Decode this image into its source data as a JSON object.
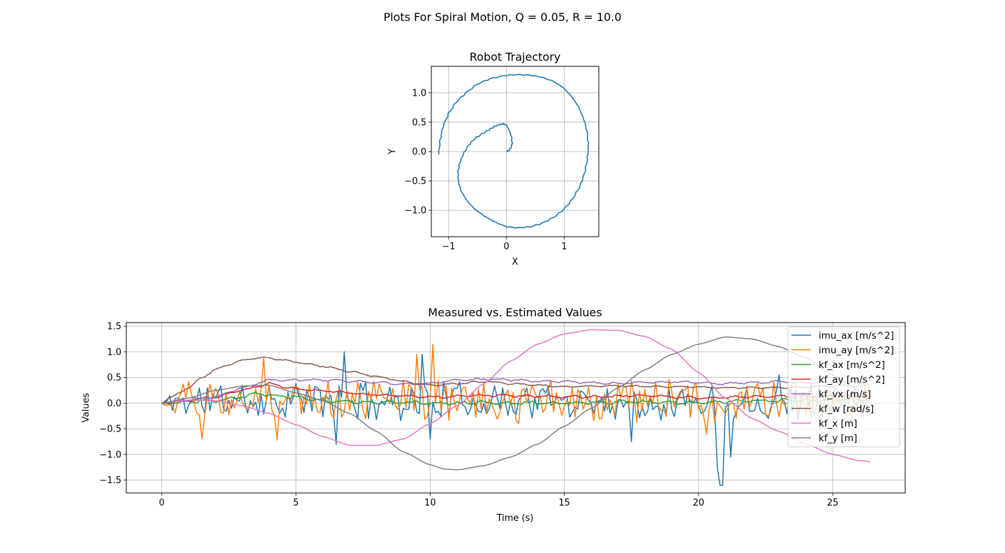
{
  "figure": {
    "suptitle": "Plots For Spiral Motion, Q = 0.05, R = 10.0"
  },
  "chart_data": [
    {
      "type": "line",
      "title": "Robot Trajectory",
      "xlabel": "X",
      "ylabel": "Y",
      "xlim": [
        -1.3,
        1.6
      ],
      "ylim": [
        -1.45,
        1.45
      ],
      "xticks": [
        -1,
        0,
        1
      ],
      "xtick_labels": [
        "−1",
        "0",
        "1"
      ],
      "yticks": [
        -1.0,
        -0.5,
        0.0,
        0.5,
        1.0
      ],
      "ytick_labels": [
        "−1.0",
        "−0.5",
        "0.0",
        "0.5",
        "1.0"
      ],
      "grid": true,
      "series": [
        {
          "color": "#1f77b4",
          "x": [
            0.0,
            0.05,
            0.1,
            0.09,
            0.04,
            0.0,
            -0.05,
            -0.12,
            -0.2,
            -0.3,
            -0.42,
            -0.55,
            -0.66,
            -0.75,
            -0.81,
            -0.84,
            -0.83,
            -0.78,
            -0.68,
            -0.55,
            -0.38,
            -0.2,
            0.0,
            0.2,
            0.42,
            0.62,
            0.82,
            1.0,
            1.15,
            1.27,
            1.35,
            1.4,
            1.42,
            1.4,
            1.34,
            1.25,
            1.12,
            0.97,
            0.8,
            0.6,
            0.4,
            0.18,
            -0.05,
            -0.28,
            -0.5,
            -0.7,
            -0.87,
            -1.0,
            -1.1,
            -1.15,
            -1.17
          ],
          "y": [
            0.0,
            0.02,
            0.12,
            0.25,
            0.38,
            0.45,
            0.47,
            0.46,
            0.43,
            0.37,
            0.3,
            0.22,
            0.1,
            -0.05,
            -0.2,
            -0.35,
            -0.52,
            -0.68,
            -0.84,
            -0.98,
            -1.1,
            -1.2,
            -1.28,
            -1.3,
            -1.28,
            -1.22,
            -1.12,
            -0.98,
            -0.8,
            -0.6,
            -0.38,
            -0.15,
            0.08,
            0.32,
            0.55,
            0.76,
            0.95,
            1.1,
            1.2,
            1.27,
            1.3,
            1.31,
            1.29,
            1.24,
            1.15,
            1.0,
            0.84,
            0.65,
            0.42,
            0.18,
            -0.05
          ]
        }
      ]
    },
    {
      "type": "line",
      "title": "Measured vs. Estimated Values",
      "xlabel": "Time (s)",
      "ylabel": "Values",
      "xlim": [
        -1.32,
        27.7
      ],
      "ylim": [
        -1.75,
        1.57
      ],
      "xticks": [
        0,
        5,
        10,
        15,
        20,
        25
      ],
      "xtick_labels": [
        "0",
        "5",
        "10",
        "15",
        "20",
        "25"
      ],
      "yticks": [
        -1.5,
        -1.0,
        -0.5,
        0.0,
        0.5,
        1.0,
        1.5
      ],
      "ytick_labels": [
        "−1.5",
        "−1.0",
        "−0.5",
        "0.0",
        "0.5",
        "1.0",
        "1.5"
      ],
      "grid": true,
      "legend": "top-right",
      "series": [
        {
          "name": "imu_ax [m/s^2]",
          "color": "#1f77b4",
          "kind": "noise",
          "seed": 11,
          "amp": 0.32,
          "spikes": [
            [
              9.7,
              0.95
            ],
            [
              6.5,
              -0.8
            ],
            [
              10.0,
              -0.7
            ],
            [
              20.7,
              -1.25
            ],
            [
              20.85,
              -1.6
            ],
            [
              21.2,
              -1.05
            ],
            [
              6.8,
              1.0
            ],
            [
              17.5,
              -0.75
            ],
            [
              23.0,
              0.55
            ]
          ]
        },
        {
          "name": "imu_ay [m/s^2]",
          "color": "#ff7f0e",
          "kind": "noise",
          "seed": 29,
          "amp": 0.35,
          "spikes": [
            [
              10.1,
              1.15
            ],
            [
              9.5,
              0.95
            ],
            [
              1.5,
              -0.7
            ],
            [
              4.3,
              -0.72
            ],
            [
              20.3,
              -0.6
            ],
            [
              3.8,
              0.88
            ]
          ]
        },
        {
          "name": "kf_ax [m/s^2]",
          "color": "#2ca02c",
          "kind": "knots",
          "knots": [
            [
              0,
              0
            ],
            [
              1,
              0.03
            ],
            [
              2,
              0.05
            ],
            [
              3,
              0.12
            ],
            [
              3.5,
              0.2
            ],
            [
              4,
              0.15
            ],
            [
              5,
              0.12
            ],
            [
              6,
              0.05
            ],
            [
              7,
              0.03
            ],
            [
              8,
              0.02
            ],
            [
              10,
              0.0
            ],
            [
              12,
              0.01
            ],
            [
              15,
              0.0
            ],
            [
              18,
              0.03
            ],
            [
              20,
              0.0
            ],
            [
              22,
              0.05
            ],
            [
              24,
              0.05
            ],
            [
              26.4,
              0.08
            ]
          ],
          "wobble": 0.04
        },
        {
          "name": "kf_ay [m/s^2]",
          "color": "#d62728",
          "kind": "knots",
          "knots": [
            [
              0,
              0
            ],
            [
              1,
              0.05
            ],
            [
              2,
              0.12
            ],
            [
              3,
              0.25
            ],
            [
              4,
              0.38
            ],
            [
              5,
              0.28
            ],
            [
              6,
              0.24
            ],
            [
              7,
              0.2
            ],
            [
              8,
              0.16
            ],
            [
              10,
              0.12
            ],
            [
              12,
              0.15
            ],
            [
              14,
              0.14
            ],
            [
              16,
              0.12
            ],
            [
              18,
              0.15
            ],
            [
              20,
              0.1
            ],
            [
              22,
              0.12
            ],
            [
              24,
              0.14
            ],
            [
              26.4,
              0.15
            ]
          ],
          "wobble": 0.03
        },
        {
          "name": "kf_vx [m/s]",
          "color": "#9467bd",
          "kind": "knots",
          "knots": [
            [
              0,
              0
            ],
            [
              1,
              0.06
            ],
            [
              2,
              0.12
            ],
            [
              3,
              0.3
            ],
            [
              4,
              0.45
            ],
            [
              5,
              0.45
            ],
            [
              6,
              0.45
            ],
            [
              7,
              0.43
            ],
            [
              8,
              0.4
            ],
            [
              9,
              0.37
            ],
            [
              10,
              0.38
            ],
            [
              11,
              0.45
            ],
            [
              12,
              0.47
            ],
            [
              13,
              0.45
            ],
            [
              14,
              0.43
            ],
            [
              15,
              0.42
            ],
            [
              16,
              0.4
            ],
            [
              17,
              0.38
            ],
            [
              18,
              0.4
            ],
            [
              19,
              0.42
            ],
            [
              20,
              0.4
            ],
            [
              21,
              0.38
            ],
            [
              22,
              0.4
            ],
            [
              23,
              0.42
            ],
            [
              24,
              0.4
            ],
            [
              26.4,
              0.42
            ]
          ],
          "wobble": 0.025
        },
        {
          "name": "kf_w [rad/s]",
          "color": "#8c564b",
          "kind": "knots",
          "knots": [
            [
              0,
              0
            ],
            [
              0.3,
              0.1
            ],
            [
              1,
              0.3
            ],
            [
              1.5,
              0.5
            ],
            [
              2,
              0.65
            ],
            [
              2.5,
              0.75
            ],
            [
              3,
              0.83
            ],
            [
              3.5,
              0.88
            ],
            [
              4,
              0.88
            ],
            [
              5,
              0.8
            ],
            [
              6,
              0.72
            ],
            [
              7,
              0.62
            ],
            [
              8,
              0.52
            ],
            [
              9,
              0.42
            ],
            [
              10,
              0.35
            ],
            [
              11,
              0.38
            ],
            [
              12,
              0.42
            ],
            [
              13,
              0.38
            ],
            [
              14,
              0.35
            ],
            [
              15,
              0.32
            ],
            [
              17,
              0.34
            ],
            [
              19,
              0.32
            ],
            [
              21,
              0.3
            ],
            [
              23,
              0.3
            ],
            [
              24,
              0.32
            ],
            [
              26.4,
              0.35
            ]
          ],
          "wobble": 0.02
        },
        {
          "name": "kf_x [m]",
          "color": "#e377c2",
          "kind": "knots",
          "knots": [
            [
              0,
              0
            ],
            [
              1,
              0.06
            ],
            [
              2,
              0.05
            ],
            [
              3,
              -0.05
            ],
            [
              4,
              -0.2
            ],
            [
              5,
              -0.42
            ],
            [
              6,
              -0.65
            ],
            [
              7,
              -0.82
            ],
            [
              8,
              -0.82
            ],
            [
              9,
              -0.7
            ],
            [
              10,
              -0.4
            ],
            [
              11,
              -0.05
            ],
            [
              12,
              0.38
            ],
            [
              13,
              0.82
            ],
            [
              14,
              1.15
            ],
            [
              15,
              1.35
            ],
            [
              16,
              1.43
            ],
            [
              17,
              1.42
            ],
            [
              18,
              1.3
            ],
            [
              19,
              1.05
            ],
            [
              20,
              0.6
            ],
            [
              21,
              0.1
            ],
            [
              22,
              -0.3
            ],
            [
              23,
              -0.55
            ],
            [
              24,
              -0.8
            ],
            [
              25,
              -1.0
            ],
            [
              26,
              -1.12
            ],
            [
              26.4,
              -1.14
            ]
          ],
          "wobble": 0.0
        },
        {
          "name": "kf_y [m]",
          "color": "#7f7f7f",
          "kind": "knots",
          "knots": [
            [
              0,
              0
            ],
            [
              1,
              0.1
            ],
            [
              2,
              0.25
            ],
            [
              3,
              0.33
            ],
            [
              4,
              0.35
            ],
            [
              5,
              0.2
            ],
            [
              6,
              0.05
            ],
            [
              7,
              -0.2
            ],
            [
              8,
              -0.55
            ],
            [
              9,
              -0.95
            ],
            [
              10,
              -1.2
            ],
            [
              10.5,
              -1.28
            ],
            [
              11,
              -1.3
            ],
            [
              12,
              -1.22
            ],
            [
              13,
              -1.05
            ],
            [
              14,
              -0.8
            ],
            [
              15,
              -0.45
            ],
            [
              16,
              -0.1
            ],
            [
              17,
              0.3
            ],
            [
              18,
              0.65
            ],
            [
              19,
              0.95
            ],
            [
              20,
              1.15
            ],
            [
              21,
              1.29
            ],
            [
              22,
              1.25
            ],
            [
              23,
              1.1
            ],
            [
              24,
              0.88
            ],
            [
              25,
              0.55
            ],
            [
              26,
              0.25
            ],
            [
              26.4,
              0.2
            ]
          ],
          "wobble": 0.0
        }
      ],
      "t_end": 26.4,
      "t_step": 0.1
    }
  ]
}
